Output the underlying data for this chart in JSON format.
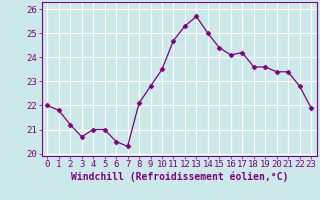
{
  "x": [
    0,
    1,
    2,
    3,
    4,
    5,
    6,
    7,
    8,
    9,
    10,
    11,
    12,
    13,
    14,
    15,
    16,
    17,
    18,
    19,
    20,
    21,
    22,
    23
  ],
  "y": [
    22.0,
    21.8,
    21.2,
    20.7,
    21.0,
    21.0,
    20.5,
    20.3,
    22.1,
    22.8,
    23.5,
    24.7,
    25.3,
    25.7,
    25.0,
    24.4,
    24.1,
    24.2,
    23.6,
    23.6,
    23.4,
    23.4,
    22.8,
    21.9
  ],
  "line_color": "#800080",
  "marker": "D",
  "marker_size": 2.5,
  "bg_color": "#cce9e9",
  "grid_color": "#ffffff",
  "xlabel": "Windchill (Refroidissement éolien,°C)",
  "xlim": [
    -0.5,
    23.5
  ],
  "ylim": [
    19.9,
    26.3
  ],
  "yticks": [
    20,
    21,
    22,
    23,
    24,
    25,
    26
  ],
  "xticks": [
    0,
    1,
    2,
    3,
    4,
    5,
    6,
    7,
    8,
    9,
    10,
    11,
    12,
    13,
    14,
    15,
    16,
    17,
    18,
    19,
    20,
    21,
    22,
    23
  ],
  "xlabel_fontsize": 7.0,
  "tick_fontsize": 6.5,
  "tick_color": "#800080",
  "label_color": "#800080",
  "spine_color": "#800080"
}
